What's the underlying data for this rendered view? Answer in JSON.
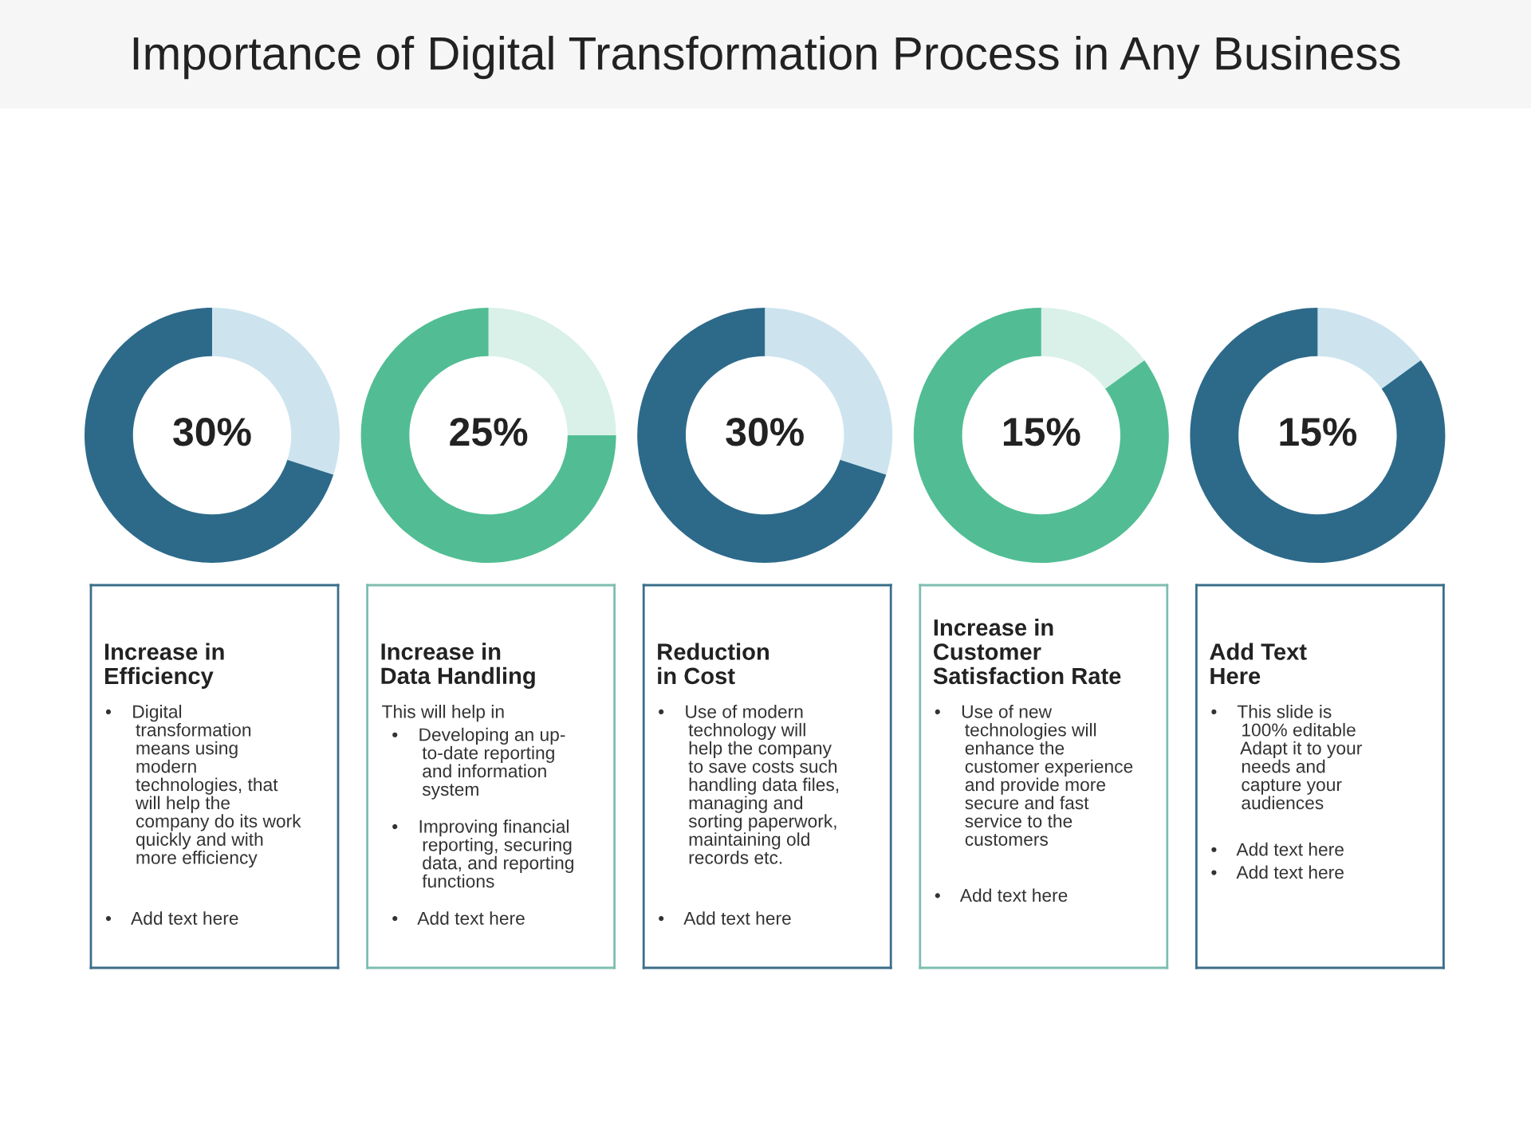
{
  "chart_data": [
    {
      "type": "other",
      "title": "Importance of Digital Transformation Process in Any Business"
    },
    {
      "type": "donut",
      "categories": [
        null,
        null
      ],
      "values": [
        30,
        70
      ],
      "colors": [
        "#cde4ef",
        "#2d6a8a"
      ],
      "value_labels": [
        "30%",
        null
      ]
    },
    {
      "type": "donut",
      "categories": [
        null,
        null
      ],
      "values": [
        25,
        75
      ],
      "colors": [
        "#d9f1e9",
        "#52bd94"
      ],
      "value_labels": [
        "25%",
        null
      ]
    },
    {
      "type": "donut",
      "categories": [
        null,
        null
      ],
      "values": [
        30,
        70
      ],
      "colors": [
        "#cde4ef",
        "#2d6a8a"
      ],
      "value_labels": [
        "30%",
        null
      ]
    },
    {
      "type": "donut",
      "categories": [
        null,
        null
      ],
      "values": [
        15,
        85
      ],
      "colors": [
        "#d9f1e9",
        "#52bd94"
      ],
      "value_labels": [
        "15%",
        null
      ]
    },
    {
      "type": "donut",
      "categories": [
        null,
        null
      ],
      "values": [
        15,
        85
      ],
      "colors": [
        "#cde4ef",
        "#2d6a8a"
      ],
      "value_labels": [
        "15%",
        null
      ]
    },
    {
      "type": "other",
      "title": "Increase in\nEfficiency",
      "annotations": [
        "•    Digital\n      transformation\n      means using\n      modern\n      technologies, that\n      will help the\n      company do its work\n      quickly and with\n      more efficiency",
        "•    Add text here"
      ]
    },
    {
      "type": "other",
      "title": "Increase in\nData Handling",
      "annotations": [
        "This will help in",
        "  •    Developing an up-\n        to-date reporting\n        and information\n        system",
        "  •    Improving financial\n        reporting, securing\n        data, and reporting\n        functions",
        "  •    Add text here"
      ]
    },
    {
      "type": "other",
      "title": "Reduction\nin Cost",
      "annotations": [
        "•    Use of modern\n      technology will\n      help the company\n      to save costs such\n      handling data files,\n      managing and\n      sorting paperwork,\n      maintaining old\n      records etc.",
        "•    Add text here"
      ]
    },
    {
      "type": "other",
      "title": "Increase in\nCustomer\nSatisfaction Rate",
      "annotations": [
        "•    Use of new\n      technologies will\n      enhance the\n      customer experience\n      and provide more\n      secure and fast\n      service to the\n      customers",
        "•    Add text here"
      ]
    },
    {
      "type": "other",
      "title": "Add Text\nHere",
      "annotations": [
        "•    This slide is\n      100% editable\n      Adapt it to your\n      needs and\n      capture your\n      audiences",
        "•    Add text here",
        "•    Add text here"
      ]
    }
  ]
}
